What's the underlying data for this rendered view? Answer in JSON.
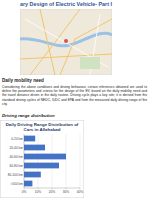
{
  "header": {
    "title": "ary Design of Electric Vehicle- Part I"
  },
  "sections": [
    {
      "heading": "Daily mobility need",
      "paragraph": "Considering the above conditions and driving behaviour, certain inferences obtained are used to define the parameters and criteria for the design of the EV, based on the daily mobility need and the travel distance driven in the daily routine. Driving cycle plays a key role; it is derived from the standard driving cycles of NEDC, IUDC and EPA and from the measured daily driving range of the city."
    },
    {
      "heading": "Driving range distribution"
    }
  ],
  "chart_data": {
    "type": "bar",
    "orientation": "horizontal",
    "title": "Daily Driving Range Distribution of Cars in Allahabad",
    "categories": [
      "0-20 km",
      "20-40 km",
      "40-60 km",
      "60-80 km",
      "80-100 km",
      ">100 km"
    ],
    "values": [
      8,
      15,
      30,
      25,
      12,
      6
    ],
    "color": "#4472c4",
    "xlim": [
      0,
      40
    ],
    "xticks": [
      {
        "value": 0,
        "label": "0%"
      },
      {
        "value": 10,
        "label": "10%"
      },
      {
        "value": 20,
        "label": "20%"
      },
      {
        "value": 30,
        "label": "30%"
      },
      {
        "value": 40,
        "label": "40%"
      }
    ],
    "grid": true
  }
}
